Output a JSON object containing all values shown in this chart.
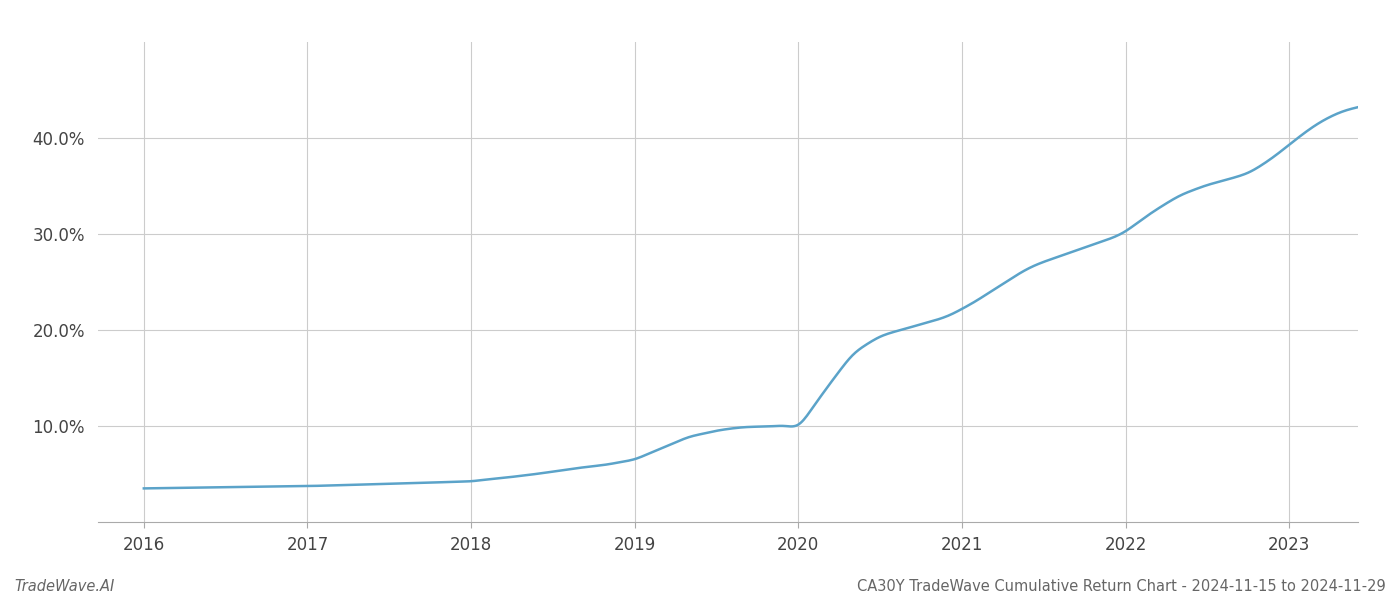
{
  "title_footer": "CA30Y TradeWave Cumulative Return Chart - 2024-11-15 to 2024-11-29",
  "watermark": "TradeWave.AI",
  "line_color": "#5ba3c9",
  "line_width": 1.8,
  "background_color": "#ffffff",
  "grid_color": "#cccccc",
  "x_values": [
    2016.0,
    2016.083,
    2016.167,
    2016.25,
    2016.333,
    2016.417,
    2016.5,
    2016.583,
    2016.667,
    2016.75,
    2016.833,
    2016.917,
    2017.0,
    2017.083,
    2017.167,
    2017.25,
    2017.333,
    2017.417,
    2017.5,
    2017.583,
    2017.667,
    2017.75,
    2017.833,
    2017.917,
    2018.0,
    2018.083,
    2018.167,
    2018.25,
    2018.333,
    2018.417,
    2018.5,
    2018.583,
    2018.667,
    2018.75,
    2018.833,
    2018.917,
    2019.0,
    2019.083,
    2019.167,
    2019.25,
    2019.333,
    2019.417,
    2019.5,
    2019.583,
    2019.667,
    2019.75,
    2019.833,
    2019.917,
    2020.0,
    2020.083,
    2020.167,
    2020.25,
    2020.333,
    2020.417,
    2020.5,
    2020.583,
    2020.667,
    2020.75,
    2020.833,
    2020.917,
    2021.0,
    2021.083,
    2021.167,
    2021.25,
    2021.333,
    2021.417,
    2021.5,
    2021.583,
    2021.667,
    2021.75,
    2021.833,
    2021.917,
    2022.0,
    2022.083,
    2022.167,
    2022.25,
    2022.333,
    2022.417,
    2022.5,
    2022.583,
    2022.667,
    2022.75,
    2022.833,
    2022.917,
    2023.0,
    2023.083,
    2023.167,
    2023.25,
    2023.333,
    2023.417,
    2023.5,
    2023.583,
    2023.667,
    2023.75,
    2023.833,
    2023.917
  ],
  "y_values": [
    3.5,
    3.52,
    3.54,
    3.56,
    3.58,
    3.6,
    3.62,
    3.64,
    3.66,
    3.68,
    3.7,
    3.72,
    3.74,
    3.78,
    3.82,
    3.86,
    3.9,
    3.94,
    3.98,
    4.02,
    4.06,
    4.1,
    4.15,
    4.2,
    4.25,
    4.4,
    4.55,
    4.7,
    4.87,
    5.05,
    5.25,
    5.45,
    5.65,
    5.82,
    6.0,
    6.25,
    6.55,
    7.1,
    7.7,
    8.3,
    8.85,
    9.2,
    9.5,
    9.72,
    9.87,
    9.93,
    9.97,
    10.0,
    10.15,
    11.8,
    13.8,
    15.7,
    17.4,
    18.5,
    19.3,
    19.8,
    20.2,
    20.6,
    21.0,
    21.5,
    22.2,
    23.0,
    23.9,
    24.8,
    25.7,
    26.5,
    27.1,
    27.6,
    28.1,
    28.6,
    29.1,
    29.6,
    30.3,
    31.3,
    32.3,
    33.2,
    34.0,
    34.6,
    35.1,
    35.5,
    35.9,
    36.4,
    37.2,
    38.2,
    39.3,
    40.4,
    41.4,
    42.2,
    42.8,
    43.2,
    43.5,
    43.7,
    43.85,
    43.92,
    43.97,
    44.0
  ],
  "xlim": [
    2015.72,
    2023.42
  ],
  "ylim": [
    0,
    50
  ],
  "yticks": [
    10.0,
    20.0,
    30.0,
    40.0
  ],
  "xticks": [
    2016,
    2017,
    2018,
    2019,
    2020,
    2021,
    2022,
    2023
  ],
  "tick_fontsize": 12,
  "footer_fontsize": 10.5
}
